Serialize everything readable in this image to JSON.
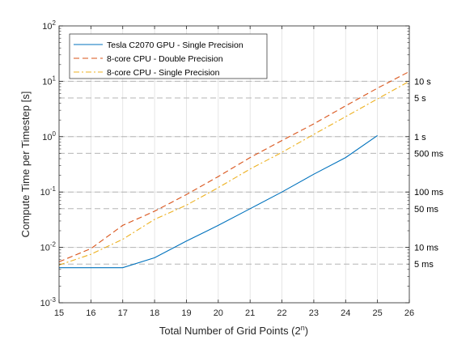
{
  "chart_data": {
    "type": "line",
    "title": "",
    "xlabel": "Total Number of Grid Points (2",
    "xlabel_sup": "n",
    "xlabel_close": ")",
    "ylabel": "Compute Time per Timestep [s]",
    "xlim": [
      15,
      26
    ],
    "ylim": [
      0.001,
      100
    ],
    "yscale": "log",
    "grid": true,
    "legend_position": "top-left",
    "x_ticks": [
      "15",
      "16",
      "17",
      "18",
      "19",
      "20",
      "21",
      "22",
      "23",
      "24",
      "25",
      "26"
    ],
    "y_ticks": [
      {
        "base": "10",
        "exp": "-3",
        "value": 0.001
      },
      {
        "base": "10",
        "exp": "-2",
        "value": 0.01
      },
      {
        "base": "10",
        "exp": "-1",
        "value": 0.1
      },
      {
        "base": "10",
        "exp": "0",
        "value": 1
      },
      {
        "base": "10",
        "exp": "1",
        "value": 10
      },
      {
        "base": "10",
        "exp": "2",
        "value": 100
      }
    ],
    "reference_lines": [
      {
        "value": 10,
        "label": "10 s"
      },
      {
        "value": 5,
        "label": "5 s"
      },
      {
        "value": 1,
        "label": "1 s"
      },
      {
        "value": 0.5,
        "label": "500 ms"
      },
      {
        "value": 0.1,
        "label": "100 ms"
      },
      {
        "value": 0.05,
        "label": "50 ms"
      },
      {
        "value": 0.01,
        "label": "10 ms"
      },
      {
        "value": 0.005,
        "label": "5 ms"
      }
    ],
    "series": [
      {
        "name": "Tesla C2070 GPU - Single Precision",
        "color": "#0072bd",
        "dash": "solid",
        "x": [
          15,
          16,
          17,
          18,
          19,
          20,
          21,
          22,
          23,
          24,
          25
        ],
        "y": [
          0.0043,
          0.0043,
          0.0043,
          0.0065,
          0.013,
          0.025,
          0.05,
          0.1,
          0.21,
          0.42,
          1.05
        ]
      },
      {
        "name": "8-core CPU - Double Precision",
        "color": "#d95319",
        "dash": "dashed",
        "x": [
          15,
          16,
          17,
          18,
          19,
          20,
          21,
          22,
          23,
          24,
          25,
          26
        ],
        "y": [
          0.0055,
          0.0095,
          0.025,
          0.045,
          0.09,
          0.19,
          0.42,
          0.85,
          1.7,
          3.6,
          7.5,
          15
        ]
      },
      {
        "name": "8-core CPU - Single Precision",
        "color": "#edb120",
        "dash": "dashdot",
        "x": [
          15,
          16,
          17,
          18,
          19,
          20,
          21,
          22,
          23,
          24,
          25,
          26
        ],
        "y": [
          0.0048,
          0.0075,
          0.014,
          0.032,
          0.058,
          0.12,
          0.26,
          0.52,
          1.1,
          2.3,
          4.8,
          10
        ]
      }
    ]
  }
}
